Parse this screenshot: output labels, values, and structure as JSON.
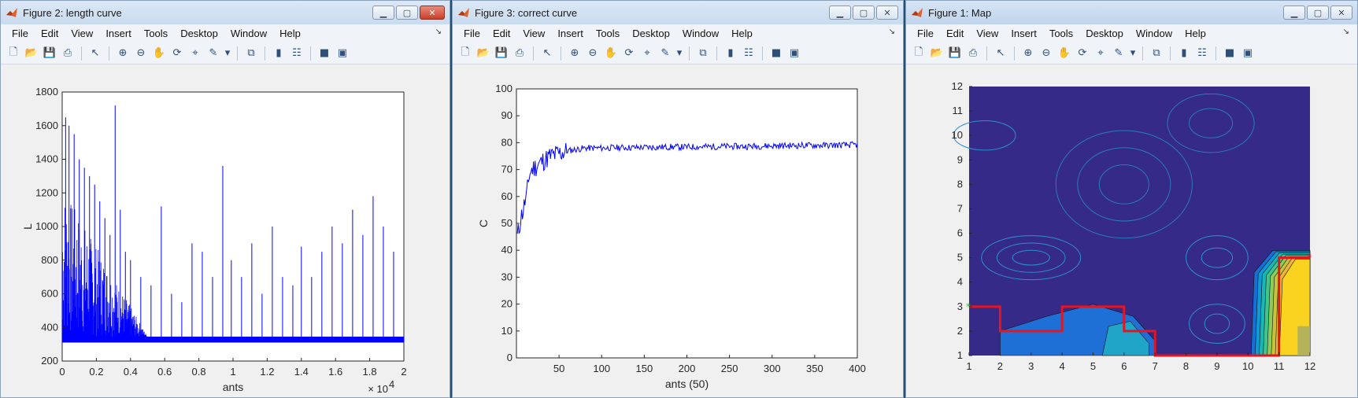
{
  "windows": [
    {
      "title": "Figure 2: length curve",
      "menu": [
        "File",
        "Edit",
        "View",
        "Insert",
        "Tools",
        "Desktop",
        "Window",
        "Help"
      ],
      "chart": {
        "type": "line",
        "xlabel": "ants",
        "ylabel": "L",
        "xlim": [
          0,
          20000
        ],
        "ylim": [
          200,
          1800
        ],
        "x_exponent_label": "× 10",
        "x_exponent": "4",
        "xtick_labels": [
          "0",
          "0.2",
          "0.4",
          "0.6",
          "0.8",
          "1",
          "1.2",
          "1.4",
          "1.6",
          "1.8",
          "2"
        ],
        "ytick_labels": [
          "200",
          "400",
          "600",
          "800",
          "1000",
          "1200",
          "1400",
          "1600",
          "1800"
        ],
        "baseline": 330,
        "series_color": "#0000ff",
        "spikes": [
          {
            "x": 200,
            "y": 1650
          },
          {
            "x": 400,
            "y": 1600
          },
          {
            "x": 700,
            "y": 1550
          },
          {
            "x": 1000,
            "y": 1400
          },
          {
            "x": 1300,
            "y": 1350
          },
          {
            "x": 1600,
            "y": 1300
          },
          {
            "x": 1900,
            "y": 1250
          },
          {
            "x": 2200,
            "y": 1150
          },
          {
            "x": 2500,
            "y": 1050
          },
          {
            "x": 2800,
            "y": 950
          },
          {
            "x": 3100,
            "y": 1720
          },
          {
            "x": 3400,
            "y": 1100
          },
          {
            "x": 3700,
            "y": 850
          },
          {
            "x": 4000,
            "y": 800
          },
          {
            "x": 4600,
            "y": 700
          },
          {
            "x": 5200,
            "y": 650
          },
          {
            "x": 5800,
            "y": 1120
          },
          {
            "x": 6400,
            "y": 600
          },
          {
            "x": 7000,
            "y": 550
          },
          {
            "x": 7600,
            "y": 900
          },
          {
            "x": 8200,
            "y": 850
          },
          {
            "x": 8800,
            "y": 700
          },
          {
            "x": 9400,
            "y": 1360
          },
          {
            "x": 9900,
            "y": 800
          },
          {
            "x": 10500,
            "y": 700
          },
          {
            "x": 11100,
            "y": 900
          },
          {
            "x": 11700,
            "y": 600
          },
          {
            "x": 12300,
            "y": 1000
          },
          {
            "x": 12900,
            "y": 700
          },
          {
            "x": 13500,
            "y": 650
          },
          {
            "x": 14000,
            "y": 880
          },
          {
            "x": 14600,
            "y": 700
          },
          {
            "x": 15200,
            "y": 850
          },
          {
            "x": 15800,
            "y": 1000
          },
          {
            "x": 16400,
            "y": 900
          },
          {
            "x": 17000,
            "y": 1100
          },
          {
            "x": 17600,
            "y": 950
          },
          {
            "x": 18200,
            "y": 1180
          },
          {
            "x": 18800,
            "y": 1000
          },
          {
            "x": 19400,
            "y": 850
          }
        ]
      }
    },
    {
      "title": "Figure 3: correct curve",
      "menu": [
        "File",
        "Edit",
        "View",
        "Insert",
        "Tools",
        "Desktop",
        "Window",
        "Help"
      ],
      "chart": {
        "type": "line",
        "xlabel": "ants (50)",
        "ylabel": "C",
        "xlim": [
          0,
          400
        ],
        "ylim": [
          0,
          100
        ],
        "xtick_labels": [
          "50",
          "100",
          "150",
          "200",
          "250",
          "300",
          "350",
          "400"
        ],
        "ytick_labels": [
          "0",
          "10",
          "20",
          "30",
          "40",
          "50",
          "60",
          "70",
          "80",
          "90",
          "100"
        ],
        "series_color": "#0000ff",
        "points": [
          [
            1,
            45
          ],
          [
            3,
            48
          ],
          [
            5,
            52
          ],
          [
            8,
            55
          ],
          [
            10,
            58
          ],
          [
            12,
            60
          ],
          [
            15,
            68
          ],
          [
            18,
            70
          ],
          [
            22,
            71
          ],
          [
            26,
            72
          ],
          [
            30,
            73
          ],
          [
            35,
            74
          ],
          [
            40,
            75
          ],
          [
            45,
            75.5
          ],
          [
            50,
            76
          ],
          [
            55,
            76.5
          ],
          [
            60,
            77
          ],
          [
            70,
            77.5
          ],
          [
            80,
            78
          ],
          [
            90,
            78
          ],
          [
            100,
            78
          ],
          [
            120,
            78.2
          ],
          [
            140,
            78.2
          ],
          [
            160,
            78.3
          ],
          [
            180,
            78.4
          ],
          [
            200,
            78.4
          ],
          [
            220,
            78.5
          ],
          [
            240,
            78.6
          ],
          [
            260,
            78.6
          ],
          [
            280,
            78.7
          ],
          [
            300,
            78.8
          ],
          [
            320,
            78.9
          ],
          [
            340,
            79
          ],
          [
            360,
            79
          ],
          [
            380,
            79.1
          ],
          [
            400,
            79.2
          ]
        ]
      }
    },
    {
      "title": "Figure 1: Map",
      "menu": [
        "File",
        "Edit",
        "View",
        "Insert",
        "Tools",
        "Desktop",
        "Window",
        "Help"
      ],
      "chart": {
        "type": "heatmap",
        "xlim": [
          1,
          12
        ],
        "ylim": [
          1,
          12
        ],
        "xtick_labels": [
          "1",
          "2",
          "3",
          "4",
          "5",
          "6",
          "7",
          "8",
          "9",
          "10",
          "11",
          "12"
        ],
        "ytick_labels": [
          "1",
          "2",
          "3",
          "4",
          "5",
          "6",
          "7",
          "8",
          "9",
          "10",
          "11",
          "12"
        ],
        "background_color": "#352a87",
        "path_color": "#e8141e",
        "path": [
          [
            1,
            3
          ],
          [
            2,
            3
          ],
          [
            2,
            2
          ],
          [
            4,
            2
          ],
          [
            4,
            3
          ],
          [
            6,
            3
          ],
          [
            6,
            2
          ],
          [
            7,
            2
          ],
          [
            7,
            1
          ],
          [
            11,
            1
          ],
          [
            11,
            5
          ],
          [
            12,
            5
          ]
        ],
        "start": [
          1,
          3
        ],
        "end": [
          12,
          5
        ]
      }
    }
  ]
}
